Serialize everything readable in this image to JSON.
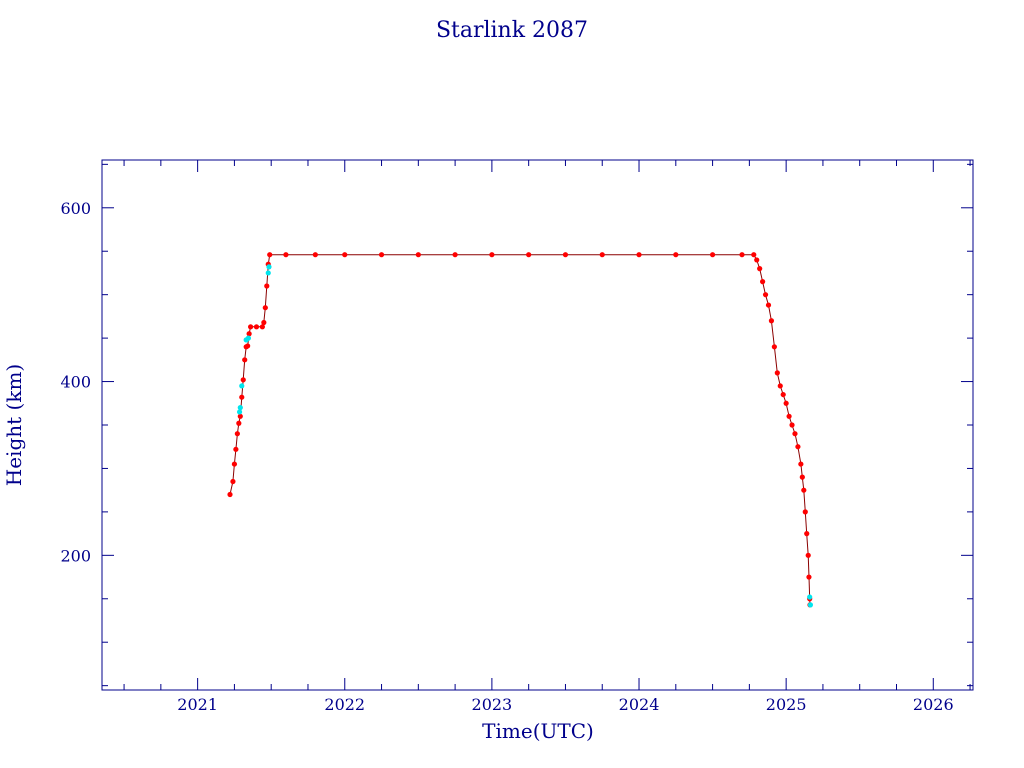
{
  "chart_data": {
    "type": "scatter",
    "title": "Starlink 2087",
    "xlabel": "Time(UTC)",
    "ylabel": "Height (km)",
    "xlim": [
      2020.35,
      2026.27
    ],
    "ylim": [
      45,
      655
    ],
    "xticks": [
      2021,
      2022,
      2023,
      2024,
      2025,
      2026
    ],
    "xtick_labels": [
      "2021",
      "2022",
      "2023",
      "2024",
      "2025",
      "2026"
    ],
    "yticks": [
      200,
      400,
      600
    ],
    "ytick_labels": [
      "200",
      "400",
      "600"
    ],
    "grid": false,
    "colors": {
      "axes": "#00008b",
      "text": "#00008b",
      "line": "#8b0000",
      "points_primary": "#ff0000",
      "points_secondary": "#00e5ee"
    },
    "series": [
      {
        "values": [
          [
            2021.22,
            270
          ],
          [
            2021.24,
            285
          ],
          [
            2021.25,
            305
          ],
          [
            2021.26,
            322
          ],
          [
            2021.27,
            340
          ],
          [
            2021.28,
            352
          ],
          [
            2021.29,
            360
          ],
          [
            2021.3,
            382
          ],
          [
            2021.31,
            402
          ],
          [
            2021.32,
            425
          ],
          [
            2021.33,
            440
          ],
          [
            2021.34,
            441
          ],
          [
            2021.35,
            455
          ],
          [
            2021.36,
            463
          ],
          [
            2021.4,
            463
          ],
          [
            2021.44,
            463
          ],
          [
            2021.45,
            468
          ],
          [
            2021.46,
            485
          ],
          [
            2021.47,
            510
          ],
          [
            2021.48,
            535
          ],
          [
            2021.49,
            546
          ],
          [
            2021.6,
            546
          ],
          [
            2021.8,
            546
          ],
          [
            2022.0,
            546
          ],
          [
            2022.25,
            546
          ],
          [
            2022.5,
            546
          ],
          [
            2022.75,
            546
          ],
          [
            2023.0,
            546
          ],
          [
            2023.25,
            546
          ],
          [
            2023.5,
            546
          ],
          [
            2023.75,
            546
          ],
          [
            2024.0,
            546
          ],
          [
            2024.25,
            546
          ],
          [
            2024.5,
            546
          ],
          [
            2024.7,
            546
          ],
          [
            2024.78,
            546
          ],
          [
            2024.8,
            540
          ],
          [
            2024.82,
            530
          ],
          [
            2024.84,
            515
          ],
          [
            2024.86,
            500
          ],
          [
            2024.88,
            488
          ],
          [
            2024.9,
            470
          ],
          [
            2024.92,
            440
          ],
          [
            2024.94,
            410
          ],
          [
            2024.96,
            395
          ],
          [
            2024.98,
            385
          ],
          [
            2025.0,
            375
          ],
          [
            2025.02,
            360
          ],
          [
            2025.04,
            350
          ],
          [
            2025.06,
            340
          ],
          [
            2025.08,
            325
          ],
          [
            2025.1,
            305
          ],
          [
            2025.11,
            290
          ],
          [
            2025.12,
            275
          ],
          [
            2025.13,
            250
          ],
          [
            2025.14,
            225
          ],
          [
            2025.15,
            200
          ],
          [
            2025.155,
            175
          ],
          [
            2025.16,
            150
          ],
          [
            2025.162,
            143
          ]
        ]
      },
      {
        "values": [
          [
            2021.285,
            365
          ],
          [
            2021.29,
            370
          ],
          [
            2021.3,
            395
          ],
          [
            2021.33,
            448
          ],
          [
            2021.345,
            450
          ],
          [
            2021.48,
            525
          ],
          [
            2021.485,
            532
          ],
          [
            2025.16,
            152
          ],
          [
            2025.165,
            143
          ]
        ]
      }
    ]
  }
}
